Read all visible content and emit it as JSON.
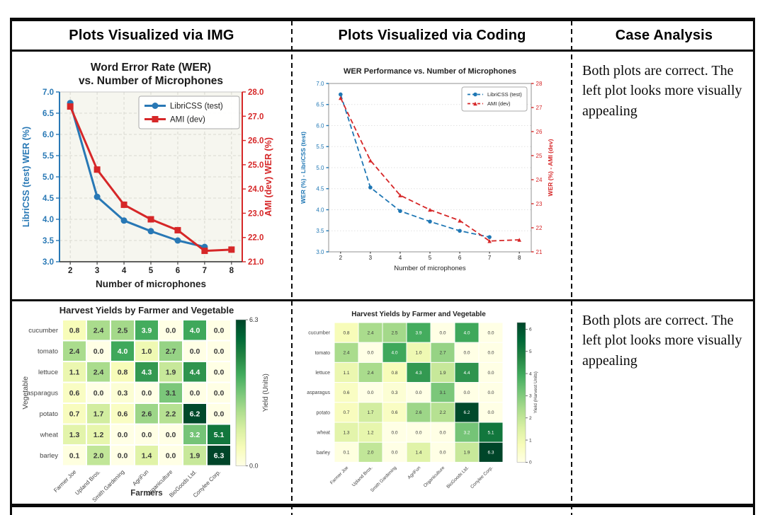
{
  "header": {
    "columns": [
      "Plots Visualized via IMG",
      "Plots Visualized via Coding",
      "Case Analysis"
    ]
  },
  "rows": [
    {
      "case_analysis": "Both plots are correct. The left plot looks more visually appealing"
    },
    {
      "case_analysis": "Both plots are correct. The left plot looks more visually appealing"
    }
  ],
  "chart_data": [
    {
      "id": "wer-img",
      "type": "line",
      "variant": "img",
      "title": "Word Error Rate (WER)\nvs. Number of Microphones",
      "xlabel": "Number of microphones",
      "xlim": [
        1.6,
        8.4
      ],
      "x_ticks": [
        "2",
        "3",
        "4",
        "5",
        "6",
        "7",
        "8"
      ],
      "left_axis": {
        "label": "LibriCSS (test) WER (%)",
        "color": "#2878b5",
        "lim": [
          3.0,
          7.0
        ],
        "ticks": [
          "3.0",
          "3.5",
          "4.0",
          "4.5",
          "5.0",
          "5.5",
          "6.0",
          "6.5",
          "7.0"
        ]
      },
      "right_axis": {
        "label": "AMI (dev) WER (%)",
        "color": "#d62728",
        "lim": [
          21.0,
          28.0
        ],
        "ticks": [
          "21.0",
          "22.0",
          "23.0",
          "24.0",
          "25.0",
          "26.0",
          "27.0",
          "28.0"
        ]
      },
      "series": [
        {
          "name": "LibriCSS (test)",
          "axis": "left",
          "marker": "circle",
          "color": "#2878b5",
          "x": [
            2,
            3,
            4,
            5,
            6,
            7
          ],
          "y": [
            6.74,
            4.53,
            3.97,
            3.72,
            3.5,
            3.35
          ]
        },
        {
          "name": "AMI (dev)",
          "axis": "right",
          "marker": "square",
          "color": "#d62728",
          "x": [
            2,
            3,
            4,
            5,
            6,
            7,
            8
          ],
          "y": [
            27.4,
            24.8,
            23.35,
            22.75,
            22.3,
            21.45,
            21.5
          ]
        }
      ],
      "legend": [
        "LibriCSS (test)",
        "AMI (dev)"
      ],
      "grid": true,
      "legend_position": "upper right"
    },
    {
      "id": "wer-code",
      "type": "line",
      "variant": "code",
      "title": "WER Performance vs. Number of Microphones",
      "xlabel": "Number of microphones",
      "xlim": [
        1.6,
        8.4
      ],
      "x_ticks": [
        "2",
        "3",
        "4",
        "5",
        "6",
        "7",
        "8"
      ],
      "left_axis": {
        "label": "WER (%) - LibriCSS (test)",
        "color": "#1f77b4",
        "lim": [
          3.0,
          7.0
        ],
        "ticks": [
          "3.0",
          "3.5",
          "4.0",
          "4.5",
          "5.0",
          "5.5",
          "6.0",
          "6.5",
          "7.0"
        ]
      },
      "right_axis": {
        "label": "WER (%) - AMI (dev)",
        "color": "#d62728",
        "lim": [
          21.0,
          28.0
        ],
        "ticks": [
          "21",
          "22",
          "23",
          "24",
          "25",
          "26",
          "27",
          "28"
        ]
      },
      "series": [
        {
          "name": "LibriCSS (test)",
          "axis": "left",
          "marker": "circle",
          "color": "#1f77b4",
          "x": [
            2,
            3,
            4,
            5,
            6,
            7
          ],
          "y": [
            6.74,
            4.53,
            3.97,
            3.72,
            3.5,
            3.35
          ]
        },
        {
          "name": "AMI (dev)",
          "axis": "right",
          "marker": "triangle",
          "color": "#d62728",
          "x": [
            2,
            3,
            4,
            5,
            6,
            7,
            8
          ],
          "y": [
            27.4,
            24.8,
            23.35,
            22.75,
            22.3,
            21.45,
            21.5
          ]
        }
      ],
      "legend": [
        "LibriCSS (test)",
        "AMI (dev)"
      ],
      "grid": true,
      "legend_position": "upper right"
    },
    {
      "id": "harvest-img",
      "type": "heatmap",
      "variant": "img",
      "title": "Harvest Yields by Farmer and Vegetable",
      "xlabel": "Farmers",
      "ylabel": "Vegetable",
      "rows": [
        "cucumber",
        "tomato",
        "lettuce",
        "asparagus",
        "potato",
        "wheat",
        "barley"
      ],
      "cols": [
        "Farmer Joe",
        "Upland Bros.",
        "Smith Gardening",
        "AgriFun",
        "Organiculture",
        "BioGoods Ltd.",
        "Conylee Corp."
      ],
      "values": [
        [
          0.8,
          2.4,
          2.5,
          3.9,
          0.0,
          4.0,
          0.0
        ],
        [
          2.4,
          0.0,
          4.0,
          1.0,
          2.7,
          0.0,
          0.0
        ],
        [
          1.1,
          2.4,
          0.8,
          4.3,
          1.9,
          4.4,
          0.0
        ],
        [
          0.6,
          0.0,
          0.3,
          0.0,
          3.1,
          0.0,
          0.0
        ],
        [
          0.7,
          1.7,
          0.6,
          2.6,
          2.2,
          6.2,
          0.0
        ],
        [
          1.3,
          1.2,
          0.0,
          0.0,
          0.0,
          3.2,
          5.1
        ],
        [
          0.1,
          2.0,
          0.0,
          1.4,
          0.0,
          1.9,
          6.3
        ]
      ],
      "vmin": 0.0,
      "vmax": 6.3,
      "colormap": "YlGn",
      "colorbar": {
        "label": "Yield (Units)",
        "ticks": [
          {
            "v": 6.3,
            "label": "6.3"
          },
          {
            "v": 0.0,
            "label": "0.0"
          }
        ]
      }
    },
    {
      "id": "harvest-code",
      "type": "heatmap",
      "variant": "code",
      "title": "Harvest Yields by Farmer and Vegetable",
      "xlabel": "",
      "ylabel": "",
      "rows": [
        "cucumber",
        "tomato",
        "lettuce",
        "asparagus",
        "potato",
        "wheat",
        "barley"
      ],
      "cols": [
        "Farmer Joe",
        "Upland Bros.",
        "Smith Gardening",
        "AgriFun",
        "Organiculture",
        "BioGoods Ltd.",
        "Conylee Corp."
      ],
      "values": [
        [
          0.8,
          2.4,
          2.5,
          3.9,
          0.0,
          4.0,
          0.0
        ],
        [
          2.4,
          0.0,
          4.0,
          1.0,
          2.7,
          0.0,
          0.0
        ],
        [
          1.1,
          2.4,
          0.8,
          4.3,
          1.9,
          4.4,
          0.0
        ],
        [
          0.6,
          0.0,
          0.3,
          0.0,
          3.1,
          0.0,
          0.0
        ],
        [
          0.7,
          1.7,
          0.6,
          2.6,
          2.2,
          6.2,
          0.0
        ],
        [
          1.3,
          1.2,
          0.0,
          0.0,
          0.0,
          3.2,
          5.1
        ],
        [
          0.1,
          2.0,
          0.0,
          1.4,
          0.0,
          1.9,
          6.3
        ]
      ],
      "vmin": 0.0,
      "vmax": 6.3,
      "colormap": "YlGn",
      "colorbar": {
        "label": "Yield (Harvest Units)",
        "ticks": [
          {
            "v": 0,
            "label": "0"
          },
          {
            "v": 1,
            "label": "1"
          },
          {
            "v": 2,
            "label": "2"
          },
          {
            "v": 3,
            "label": "3"
          },
          {
            "v": 4,
            "label": "4"
          },
          {
            "v": 5,
            "label": "5"
          },
          {
            "v": 6,
            "label": "6"
          }
        ]
      }
    }
  ]
}
